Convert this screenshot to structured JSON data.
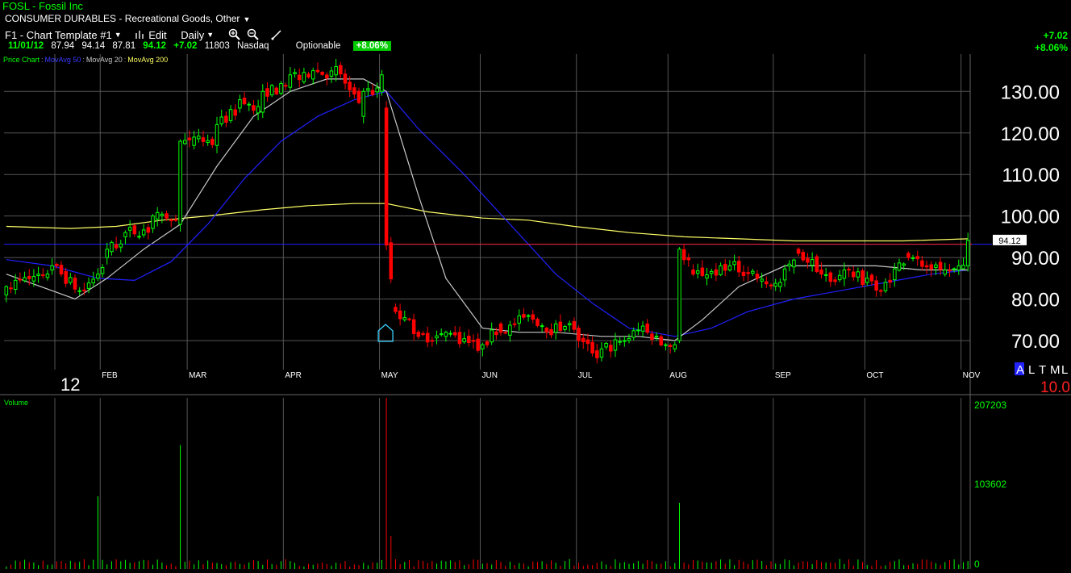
{
  "header": {
    "symbol_title": "FOSL - Fossil Inc",
    "industry": "CONSUMER DURABLES - Recreational Goods, Other",
    "industry_caret": "▼"
  },
  "toolbar": {
    "template_label": "F1 - Chart Template #1",
    "edit_label": "Edit",
    "period_label": "Daily",
    "caret": "▼"
  },
  "quote": {
    "date": "11/01/12",
    "open": "87.94",
    "high": "94.14",
    "low": "87.81",
    "close": "94.12",
    "change": "+7.02",
    "volume": "11803",
    "exchange": "Nasdaq",
    "optionable": "Optionable",
    "pct_change": "+8.06%"
  },
  "change_panel": {
    "change": "+7.02",
    "pct_change": "+8.06%"
  },
  "legend": {
    "price_chart": "Price Chart",
    "ma50": "MovAvg 50",
    "ma20": "MovAvg 20",
    "ma200": "MovAvg 200",
    "sep": ":"
  },
  "colors": {
    "up": "#00ff00",
    "down": "#ff0000",
    "ma50": "#2020ff",
    "ma20": "#c8c8c8",
    "ma200": "#ffff66",
    "grid": "#555555",
    "hline_blue": "#2020ff",
    "hline_red": "#ff2020"
  },
  "chart_data": [
    {
      "type": "candlestick",
      "title": "",
      "ylim": [
        63,
        139
      ],
      "yticks": [
        "130.00",
        "120.00",
        "110.00",
        "100.00",
        "90.00",
        "80.00",
        "70.00"
      ],
      "ytick_values": [
        130,
        120,
        110,
        100,
        90,
        80,
        70
      ],
      "year_label": "12",
      "month_labels": [
        "FEB",
        "MAR",
        "APR",
        "MAY",
        "JUN",
        "JUL",
        "AUG",
        "SEP",
        "OCT",
        "NOV"
      ],
      "month_start_index": [
        21,
        40,
        61,
        82,
        104,
        125,
        145,
        168,
        188,
        209
      ],
      "total_bars": 211,
      "last_price_label": "94.12",
      "last_price": 94.12,
      "resistance_line": {
        "value": 93.2,
        "from_index": 83
      },
      "earnings_marker_index": 83,
      "scale_labels": [
        "A",
        "L",
        "T",
        "M",
        "L"
      ],
      "scale_value": "10.0",
      "anchors": [
        [
          0,
          81,
          83
        ],
        [
          10,
          87,
          88
        ],
        [
          16,
          82,
          82
        ],
        [
          20,
          85,
          86
        ],
        [
          22,
          90,
          92
        ],
        [
          26,
          95,
          96
        ],
        [
          32,
          97,
          100
        ],
        [
          38,
          98,
          118
        ],
        [
          41,
          117,
          119
        ],
        [
          46,
          117,
          122
        ],
        [
          51,
          126,
          128
        ],
        [
          56,
          125,
          130
        ],
        [
          62,
          131,
          134
        ],
        [
          67,
          133,
          135
        ],
        [
          72,
          134,
          136
        ],
        [
          78,
          124,
          130
        ],
        [
          82,
          130,
          134
        ],
        [
          83,
          126,
          93
        ],
        [
          85,
          78,
          77
        ],
        [
          90,
          72,
          71
        ],
        [
          96,
          71,
          72
        ],
        [
          104,
          68,
          69
        ],
        [
          108,
          74,
          72
        ],
        [
          114,
          76,
          76
        ],
        [
          120,
          72,
          74
        ],
        [
          125,
          73,
          70
        ],
        [
          130,
          66,
          68
        ],
        [
          135,
          70,
          70
        ],
        [
          140,
          74,
          72
        ],
        [
          146,
          68,
          69
        ],
        [
          147,
          70,
          92
        ],
        [
          150,
          87,
          86
        ],
        [
          158,
          87,
          88
        ],
        [
          164,
          86,
          85
        ],
        [
          169,
          83,
          84
        ],
        [
          173,
          92,
          91
        ],
        [
          178,
          87,
          86
        ],
        [
          183,
          85,
          87
        ],
        [
          188,
          84,
          85
        ],
        [
          192,
          82,
          84
        ],
        [
          197,
          91,
          90
        ],
        [
          205,
          86,
          87
        ],
        [
          208,
          87,
          88
        ],
        [
          210,
          88,
          94.12
        ]
      ],
      "ma20": [
        [
          0,
          86
        ],
        [
          15,
          80
        ],
        [
          22,
          85
        ],
        [
          30,
          92
        ],
        [
          38,
          98
        ],
        [
          46,
          112
        ],
        [
          54,
          124
        ],
        [
          62,
          130
        ],
        [
          70,
          133
        ],
        [
          78,
          133
        ],
        [
          83,
          130
        ],
        [
          90,
          105
        ],
        [
          96,
          85
        ],
        [
          104,
          73
        ],
        [
          112,
          72
        ],
        [
          120,
          72
        ],
        [
          130,
          71
        ],
        [
          138,
          71
        ],
        [
          146,
          70
        ],
        [
          152,
          75
        ],
        [
          160,
          83
        ],
        [
          170,
          88
        ],
        [
          180,
          88
        ],
        [
          190,
          88
        ],
        [
          200,
          87
        ],
        [
          210,
          87
        ]
      ],
      "ma50": [
        [
          0,
          89.5
        ],
        [
          10,
          88
        ],
        [
          20,
          85
        ],
        [
          28,
          84.5
        ],
        [
          36,
          89
        ],
        [
          44,
          98
        ],
        [
          52,
          109
        ],
        [
          60,
          118
        ],
        [
          68,
          124
        ],
        [
          76,
          128
        ],
        [
          83,
          130
        ],
        [
          90,
          121
        ],
        [
          100,
          110
        ],
        [
          110,
          98
        ],
        [
          120,
          86
        ],
        [
          128,
          79
        ],
        [
          136,
          73
        ],
        [
          146,
          71
        ],
        [
          154,
          73
        ],
        [
          162,
          77
        ],
        [
          172,
          80
        ],
        [
          182,
          82
        ],
        [
          192,
          84
        ],
        [
          202,
          86
        ],
        [
          210,
          87
        ]
      ],
      "ma200": [
        [
          0,
          97.5
        ],
        [
          14,
          97
        ],
        [
          24,
          97.5
        ],
        [
          34,
          99
        ],
        [
          44,
          100
        ],
        [
          56,
          101.5
        ],
        [
          66,
          102.5
        ],
        [
          76,
          103
        ],
        [
          83,
          103
        ],
        [
          92,
          101
        ],
        [
          104,
          99.5
        ],
        [
          114,
          99
        ],
        [
          124,
          97.5
        ],
        [
          136,
          96
        ],
        [
          148,
          95
        ],
        [
          160,
          94.5
        ],
        [
          172,
          94
        ],
        [
          184,
          94
        ],
        [
          196,
          94
        ],
        [
          210,
          94.5
        ]
      ],
      "hline_blue": 93.2
    },
    {
      "type": "bar",
      "title": "Volume",
      "ylim": [
        0,
        207203
      ],
      "yticks": [
        "207203",
        "103602",
        "0"
      ],
      "ytick_values": [
        207203,
        103602,
        0
      ],
      "spikes": [
        [
          20,
          88000
        ],
        [
          38,
          150000
        ],
        [
          83,
          207203
        ],
        [
          84,
          40000
        ],
        [
          147,
          80000
        ]
      ]
    }
  ]
}
